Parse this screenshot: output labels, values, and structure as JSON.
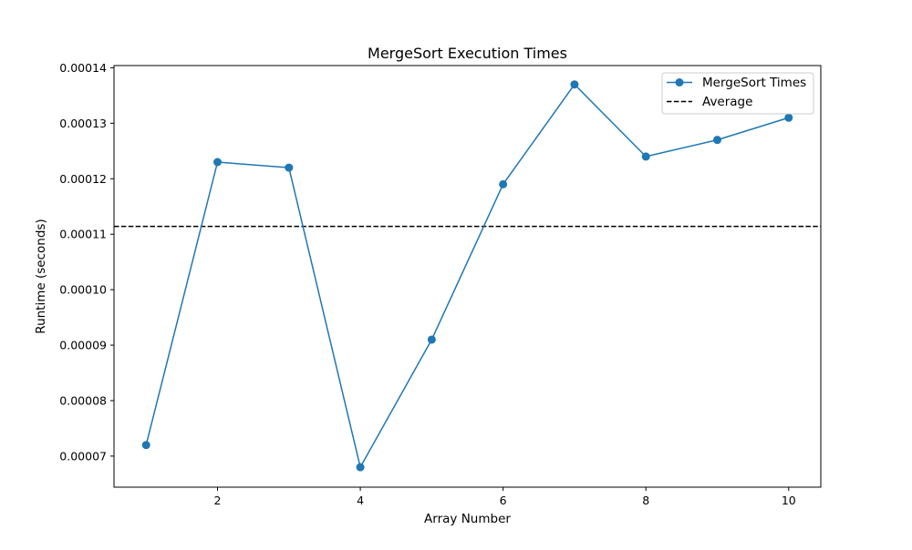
{
  "chart_data": {
    "type": "line",
    "title": "MergeSort Execution Times",
    "xlabel": "Array Number",
    "ylabel": "Runtime (seconds)",
    "xlim": [
      0.55,
      10.45
    ],
    "ylim": [
      6.44e-05,
      0.0001404
    ],
    "xticks": [
      2,
      4,
      6,
      8,
      10
    ],
    "xtick_labels": [
      "2",
      "4",
      "6",
      "8",
      "10"
    ],
    "yticks": [
      7e-05,
      8e-05,
      9e-05,
      0.0001,
      0.00011,
      0.00012,
      0.00013,
      0.00014
    ],
    "ytick_labels": [
      "0.00007",
      "0.00008",
      "0.00009",
      "0.00010",
      "0.00011",
      "0.00012",
      "0.00013",
      "0.00014"
    ],
    "grid": false,
    "legend_position": "top-right",
    "series": [
      {
        "name": "MergeSort Times",
        "style": "solid-line-with-circle-markers",
        "color": "#1f77b4",
        "x": [
          1,
          2,
          3,
          4,
          5,
          6,
          7,
          8,
          9,
          10
        ],
        "y": [
          7.2e-05,
          0.000123,
          0.000122,
          6.8e-05,
          9.1e-05,
          0.000119,
          0.000137,
          0.000124,
          0.000127,
          0.000131
        ]
      },
      {
        "name": "Average",
        "style": "dashed-horizontal-line",
        "color": "#000000",
        "y": 0.0001114
      }
    ]
  }
}
